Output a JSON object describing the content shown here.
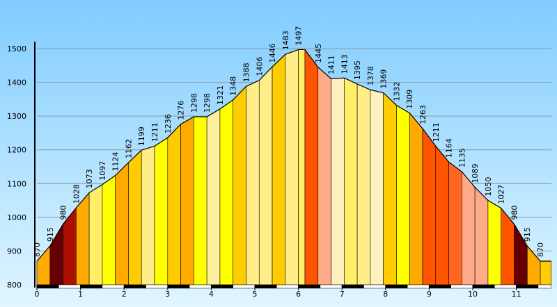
{
  "chart_data": {
    "type": "area",
    "title": "",
    "xlabel": "",
    "ylabel": "",
    "xlim": [
      0,
      11.8
    ],
    "ylim": [
      800,
      1500
    ],
    "grid": true,
    "x_ticks": [
      "0",
      "1",
      "2",
      "3",
      "4",
      "5",
      "6",
      "7",
      "8",
      "9",
      "10",
      "11"
    ],
    "y_ticks": [
      "800",
      "900",
      "1000",
      "1100",
      "1200",
      "1300",
      "1400",
      "1500"
    ],
    "x": [
      0,
      0.3,
      0.6,
      0.9,
      1.2,
      1.5,
      1.8,
      2.1,
      2.4,
      2.7,
      3.0,
      3.3,
      3.6,
      3.9,
      4.2,
      4.5,
      4.8,
      5.1,
      5.4,
      5.7,
      6.0,
      6.15,
      6.45,
      6.75,
      7.05,
      7.35,
      7.65,
      7.95,
      8.25,
      8.55,
      8.85,
      9.15,
      9.45,
      9.75,
      10.05,
      10.35,
      10.65,
      10.95,
      11.25,
      11.55,
      11.8
    ],
    "values": [
      870,
      915,
      980,
      1028,
      1073,
      1097,
      1124,
      1162,
      1199,
      1211,
      1236,
      1276,
      1298,
      1298,
      1321,
      1348,
      1388,
      1406,
      1446,
      1483,
      1497,
      1497,
      1445,
      1411,
      1413,
      1395,
      1378,
      1369,
      1332,
      1309,
      1263,
      1211,
      1164,
      1135,
      1089,
      1050,
      1027,
      980,
      915,
      870,
      870
    ],
    "labels": [
      "870",
      "915",
      "980",
      "1028",
      "1073",
      "1097",
      "1124",
      "1162",
      "1199",
      "1211",
      "1236",
      "1276",
      "1298",
      "1298",
      "1321",
      "1348",
      "1388",
      "1406",
      "1446",
      "1483",
      "1497",
      "1445",
      "1411",
      "1413",
      "1395",
      "1378",
      "1369",
      "1332",
      "1309",
      "1263",
      "1211",
      "1164",
      "1135",
      "1089",
      "1050",
      "1027",
      "980",
      "915",
      "870"
    ],
    "label_x": [
      0,
      0.3,
      0.6,
      0.9,
      1.2,
      1.5,
      1.8,
      2.1,
      2.4,
      2.7,
      3.0,
      3.3,
      3.6,
      3.9,
      4.2,
      4.5,
      4.8,
      5.1,
      5.4,
      5.7,
      6.0,
      6.45,
      6.75,
      7.05,
      7.35,
      7.65,
      7.95,
      8.25,
      8.55,
      8.85,
      9.15,
      9.45,
      9.75,
      10.05,
      10.35,
      10.65,
      10.95,
      11.25,
      11.55
    ],
    "segment_colors": [
      "#ffaa00",
      "#660000",
      "#aa1100",
      "#ffaa00",
      "#ffee66",
      "#ffff00",
      "#ffaa00",
      "#ffcc00",
      "#ffee88",
      "#ffff00",
      "#ffcc00",
      "#ffaa00",
      "#ffff00",
      "#fff0a0",
      "#ffff00",
      "#ffcc00",
      "#ffee88",
      "#ffee88",
      "#ffcc00",
      "#ffee88",
      "#ffee66",
      "#ff5500",
      "#ffaa88",
      "#fff0c0",
      "#ffee66",
      "#ffee88",
      "#fff0c0",
      "#ffcc00",
      "#ffff00",
      "#ffaa00",
      "#ff5500",
      "#ff5500",
      "#ff6622",
      "#ffaa88",
      "#ffaa88",
      "#ffff00",
      "#ff5500",
      "#660000",
      "#ffaa00"
    ],
    "distance_bar_colors": [
      "#000000",
      "#ffffff"
    ],
    "colors": {
      "background_top": "#80ccff",
      "background_bottom": "#e0f6ff",
      "grid": "#8899aa",
      "outline": "#000000"
    }
  }
}
